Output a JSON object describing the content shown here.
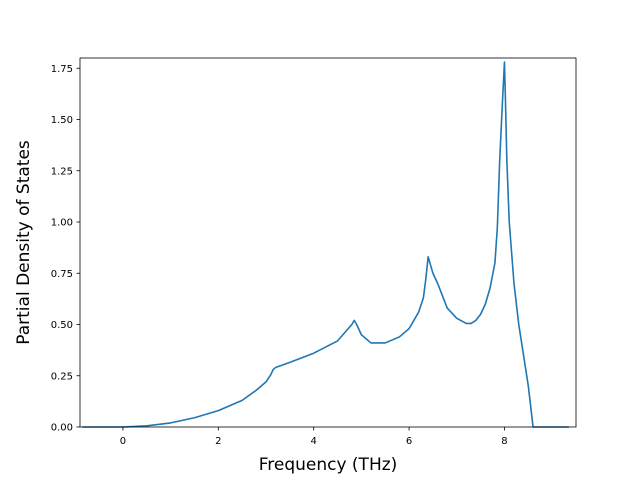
{
  "chart_data": {
    "type": "line",
    "title": "",
    "xlabel": "Frequency (THz)",
    "ylabel": "Partial Density of States",
    "xlim": [
      -0.9,
      9.5
    ],
    "ylim": [
      0,
      1.8
    ],
    "xticks": [
      0,
      2,
      4,
      6,
      8
    ],
    "xtick_labels": [
      "0",
      "2",
      "4",
      "6",
      "8"
    ],
    "yticks": [
      0,
      0.25,
      0.5,
      0.75,
      1.0,
      1.25,
      1.5,
      1.75
    ],
    "ytick_labels": [
      "0.00",
      "0.25",
      "0.50",
      "0.75",
      "1.00",
      "1.25",
      "1.50",
      "1.75"
    ],
    "grid": false,
    "series": [
      {
        "color": "#1f77b4",
        "x": [
          -0.85,
          -0.5,
          -0.2,
          0,
          0.2,
          0.5,
          1.0,
          1.5,
          2.0,
          2.5,
          2.8,
          3.0,
          3.1,
          3.15,
          3.2,
          3.5,
          4.0,
          4.5,
          4.8,
          4.85,
          4.9,
          5.0,
          5.2,
          5.5,
          5.8,
          6.0,
          6.2,
          6.3,
          6.35,
          6.4,
          6.45,
          6.5,
          6.6,
          6.7,
          6.8,
          7.0,
          7.2,
          7.3,
          7.4,
          7.5,
          7.6,
          7.7,
          7.8,
          7.85,
          7.9,
          7.95,
          8.0,
          8.02,
          8.05,
          8.1,
          8.2,
          8.3,
          8.4,
          8.5,
          8.55,
          8.6,
          9.0,
          9.35
        ],
        "y": [
          0,
          0,
          0,
          0,
          0.002,
          0.006,
          0.02,
          0.045,
          0.08,
          0.13,
          0.18,
          0.22,
          0.255,
          0.28,
          0.29,
          0.315,
          0.36,
          0.42,
          0.5,
          0.52,
          0.5,
          0.45,
          0.41,
          0.41,
          0.44,
          0.48,
          0.56,
          0.63,
          0.72,
          0.83,
          0.79,
          0.75,
          0.7,
          0.64,
          0.58,
          0.53,
          0.505,
          0.505,
          0.52,
          0.55,
          0.6,
          0.68,
          0.8,
          0.97,
          1.3,
          1.55,
          1.78,
          1.6,
          1.3,
          1.0,
          0.7,
          0.5,
          0.35,
          0.2,
          0.1,
          0,
          0,
          0
        ]
      }
    ]
  }
}
